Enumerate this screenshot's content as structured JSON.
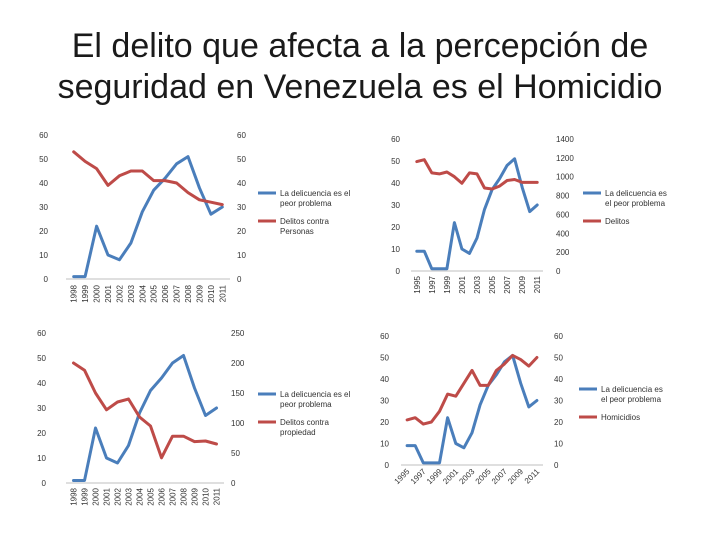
{
  "title_lines": [
    "El delito que afecta a la percepción de",
    "seguridad en Venezuela es el Homicidio"
  ],
  "colors": {
    "blue_series": "#4a7ebb",
    "red_series": "#be4b48"
  },
  "chart_data": [
    {
      "type": "line",
      "panel": "top-left",
      "x": [
        "1998",
        "1999",
        "2000",
        "2001",
        "2002",
        "2003",
        "2004",
        "2005",
        "2006",
        "2007",
        "2008",
        "2009",
        "2010",
        "2011"
      ],
      "y_left_ticks": [
        0,
        10,
        20,
        30,
        40,
        50,
        60
      ],
      "y_right_ticks": [
        0,
        10,
        20,
        30,
        40,
        50,
        60
      ],
      "ylim_left": [
        0,
        60
      ],
      "ylim_right": [
        0,
        60
      ],
      "series": [
        {
          "name": "La delicuencia es el peor problema",
          "axis": "left",
          "color": "#4a7ebb",
          "values": [
            1,
            1,
            22,
            10,
            8,
            15,
            28,
            37,
            42,
            48,
            51,
            38,
            27,
            30
          ]
        },
        {
          "name": "Delitos contra Personas",
          "axis": "right",
          "color": "#be4b48",
          "values": [
            53,
            49,
            46,
            39,
            43,
            45,
            45,
            41,
            41,
            40,
            36,
            33,
            32,
            31
          ]
        }
      ],
      "legend": [
        "La delicuencia es el",
        "peor problema",
        "Delitos contra",
        "Personas"
      ],
      "legend_position": "right"
    },
    {
      "type": "line",
      "panel": "top-right",
      "x": [
        "1995",
        "1996",
        "1997",
        "1998",
        "1999",
        "2000",
        "2001",
        "2002",
        "2003",
        "2004",
        "2005",
        "2006",
        "2007",
        "2008",
        "2009",
        "2010",
        "2011"
      ],
      "x_tick_labels": [
        "1995",
        "1997",
        "1999",
        "2001",
        "2003",
        "2005",
        "2007",
        "2009",
        "2011"
      ],
      "y_left_ticks": [
        0,
        10,
        20,
        30,
        40,
        50,
        60
      ],
      "y_right_ticks": [
        0,
        200,
        400,
        600,
        800,
        1000,
        1200,
        1400
      ],
      "ylim_left": [
        0,
        60
      ],
      "ylim_right": [
        0,
        1400
      ],
      "series": [
        {
          "name": "La delicuencia es el peor problema",
          "axis": "left",
          "color": "#4a7ebb",
          "values": [
            9,
            9,
            1,
            1,
            1,
            22,
            10,
            8,
            15,
            28,
            37,
            42,
            48,
            51,
            38,
            27,
            30
          ]
        },
        {
          "name": "Delitos",
          "axis": "right",
          "color": "#be4b48",
          "values": [
            1160,
            1180,
            1040,
            1030,
            1050,
            1000,
            930,
            1040,
            1030,
            880,
            870,
            900,
            960,
            970,
            940,
            940,
            940
          ]
        }
      ],
      "legend": [
        "La delicuencia es",
        "el peor problema",
        "Delitos"
      ],
      "legend_position": "right"
    },
    {
      "type": "line",
      "panel": "bottom-left",
      "x": [
        "1998",
        "1999",
        "2000",
        "2001",
        "2002",
        "2003",
        "2004",
        "2005",
        "2006",
        "2007",
        "2008",
        "2009",
        "2010",
        "2011"
      ],
      "y_left_ticks": [
        0,
        10,
        20,
        30,
        40,
        50,
        60
      ],
      "y_right_ticks": [
        0,
        50,
        100,
        150,
        200,
        250
      ],
      "ylim_left": [
        0,
        60
      ],
      "ylim_right": [
        0,
        250
      ],
      "series": [
        {
          "name": "La delicuencia es el peor problema",
          "axis": "left",
          "color": "#4a7ebb",
          "values": [
            1,
            1,
            22,
            10,
            8,
            15,
            28,
            37,
            42,
            48,
            51,
            38,
            27,
            30
          ]
        },
        {
          "name": "Delitos contra propiedad",
          "axis": "right",
          "color": "#be4b48",
          "values": [
            200,
            188,
            150,
            122,
            135,
            140,
            110,
            95,
            42,
            78,
            78,
            69,
            70,
            65
          ]
        }
      ],
      "legend": [
        "La delicuencia es el",
        "peor problema",
        "Delitos contra",
        "propiedad"
      ],
      "legend_position": "right"
    },
    {
      "type": "line",
      "panel": "bottom-right",
      "x": [
        "1995",
        "1996",
        "1997",
        "1998",
        "1999",
        "2000",
        "2001",
        "2002",
        "2003",
        "2004",
        "2005",
        "2006",
        "2007",
        "2008",
        "2009",
        "2010",
        "2011"
      ],
      "x_tick_labels": [
        "1995",
        "1997",
        "1999",
        "2001",
        "2003",
        "2005",
        "2007",
        "2009",
        "2011"
      ],
      "y_left_ticks": [
        0,
        10,
        20,
        30,
        40,
        50,
        60
      ],
      "y_right_ticks": [
        0,
        10,
        20,
        30,
        40,
        50,
        60
      ],
      "ylim_left": [
        0,
        60
      ],
      "ylim_right": [
        0,
        60
      ],
      "series": [
        {
          "name": "La delicuencia es el peor problema",
          "axis": "left",
          "color": "#4a7ebb",
          "values": [
            9,
            9,
            1,
            1,
            1,
            22,
            10,
            8,
            15,
            28,
            37,
            42,
            48,
            51,
            38,
            27,
            30
          ]
        },
        {
          "name": "Homicidios",
          "axis": "right",
          "color": "#be4b48",
          "values": [
            21,
            22,
            19,
            20,
            25,
            33,
            32,
            38,
            44,
            37,
            37,
            44,
            47,
            51,
            49,
            46,
            50
          ]
        }
      ],
      "legend": [
        "La delicuencia es",
        "el peor problema",
        "Homicidios"
      ],
      "legend_position": "right"
    }
  ]
}
